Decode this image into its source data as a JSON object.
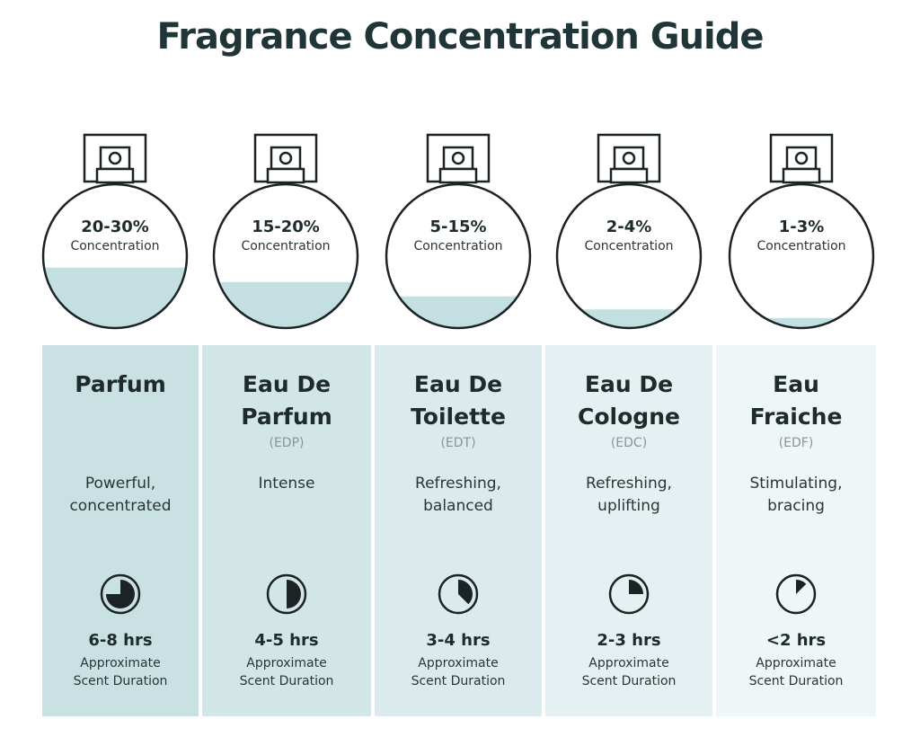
{
  "title": "Fragrance Concentration Guide",
  "colors": {
    "title": "#1f3538",
    "liquid": "#c3dfe1",
    "outline": "#1b2324"
  },
  "concentration_label": "Concentration",
  "duration_label_line1": "Approximate",
  "duration_label_line2": "Scent Duration",
  "types": [
    {
      "percent": "20-30%",
      "fill_level": 0.42,
      "name": "Parfum",
      "abbr": "",
      "desc_line1": "Powerful,",
      "desc_line2": "concentrated",
      "hours": "6-8 hrs",
      "clock_fraction": 0.75,
      "bg": "#c9e1e3"
    },
    {
      "percent": "15-20%",
      "fill_level": 0.32,
      "name_line1": "Eau De",
      "name_line2": "Parfum",
      "abbr": "(EDP)",
      "desc_line1": "Intense",
      "desc_line2": "",
      "hours": "4-5 hrs",
      "clock_fraction": 0.5,
      "bg": "#d2e6e8"
    },
    {
      "percent": "5-15%",
      "fill_level": 0.22,
      "name_line1": "Eau De",
      "name_line2": "Toilette",
      "abbr": "(EDT)",
      "desc_line1": "Refreshing,",
      "desc_line2": "balanced",
      "hours": "3-4 hrs",
      "clock_fraction": 0.375,
      "bg": "#dbebed"
    },
    {
      "percent": "2-4%",
      "fill_level": 0.13,
      "name_line1": "Eau De",
      "name_line2": "Cologne",
      "abbr": "(EDC)",
      "desc_line1": "Refreshing,",
      "desc_line2": "uplifting",
      "hours": "2-3 hrs",
      "clock_fraction": 0.25,
      "bg": "#e4f0f1"
    },
    {
      "percent": "1-3%",
      "fill_level": 0.07,
      "name_line1": "Eau",
      "name_line2": "Fraiche",
      "abbr": "(EDF)",
      "desc_line1": "Stimulating,",
      "desc_line2": "bracing",
      "hours": "<2 hrs",
      "clock_fraction": 0.125,
      "bg": "#eef6f7"
    }
  ]
}
